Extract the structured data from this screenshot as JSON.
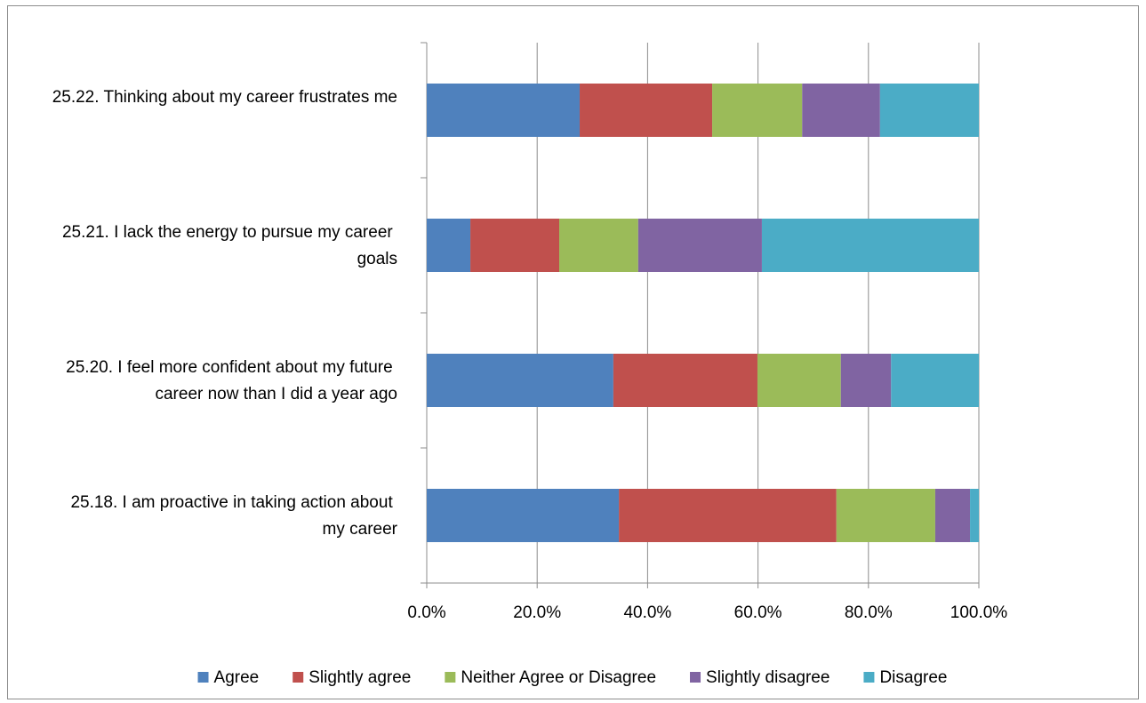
{
  "chart_data": {
    "type": "stacked_bar_horizontal",
    "categories": [
      "25.22. Thinking about my career frustrates me",
      "25.21. I lack the energy to pursue my career goals",
      "25.20. I feel more confident about my future career now than I did a year ago",
      "25.18. I am proactive in taking action about my career"
    ],
    "series": [
      {
        "name": "Agree",
        "color": "#4f81bd",
        "values": [
          27.7,
          7.9,
          33.8,
          34.8
        ]
      },
      {
        "name": "Slightly agree",
        "color": "#c0504d",
        "values": [
          24.0,
          16.1,
          26.1,
          39.4
        ]
      },
      {
        "name": "Neither Agree or Disagree",
        "color": "#9bbb59",
        "values": [
          16.3,
          14.3,
          15.1,
          17.9
        ]
      },
      {
        "name": "Slightly disagree",
        "color": "#8064a2",
        "values": [
          14.1,
          22.4,
          9.1,
          6.3
        ]
      },
      {
        "name": "Disagree",
        "color": "#4bacc6",
        "values": [
          17.9,
          39.3,
          15.9,
          1.6
        ]
      }
    ],
    "xlim": [
      0,
      100
    ],
    "xticks": [
      {
        "value": 0,
        "label": "0.0%"
      },
      {
        "value": 20,
        "label": "20.0%"
      },
      {
        "value": 40,
        "label": "40.0%"
      },
      {
        "value": 60,
        "label": "60.0%"
      },
      {
        "value": 80,
        "label": "80.0%"
      },
      {
        "value": 100,
        "label": "100.0%"
      }
    ],
    "grid": true,
    "legend": "bottom"
  }
}
